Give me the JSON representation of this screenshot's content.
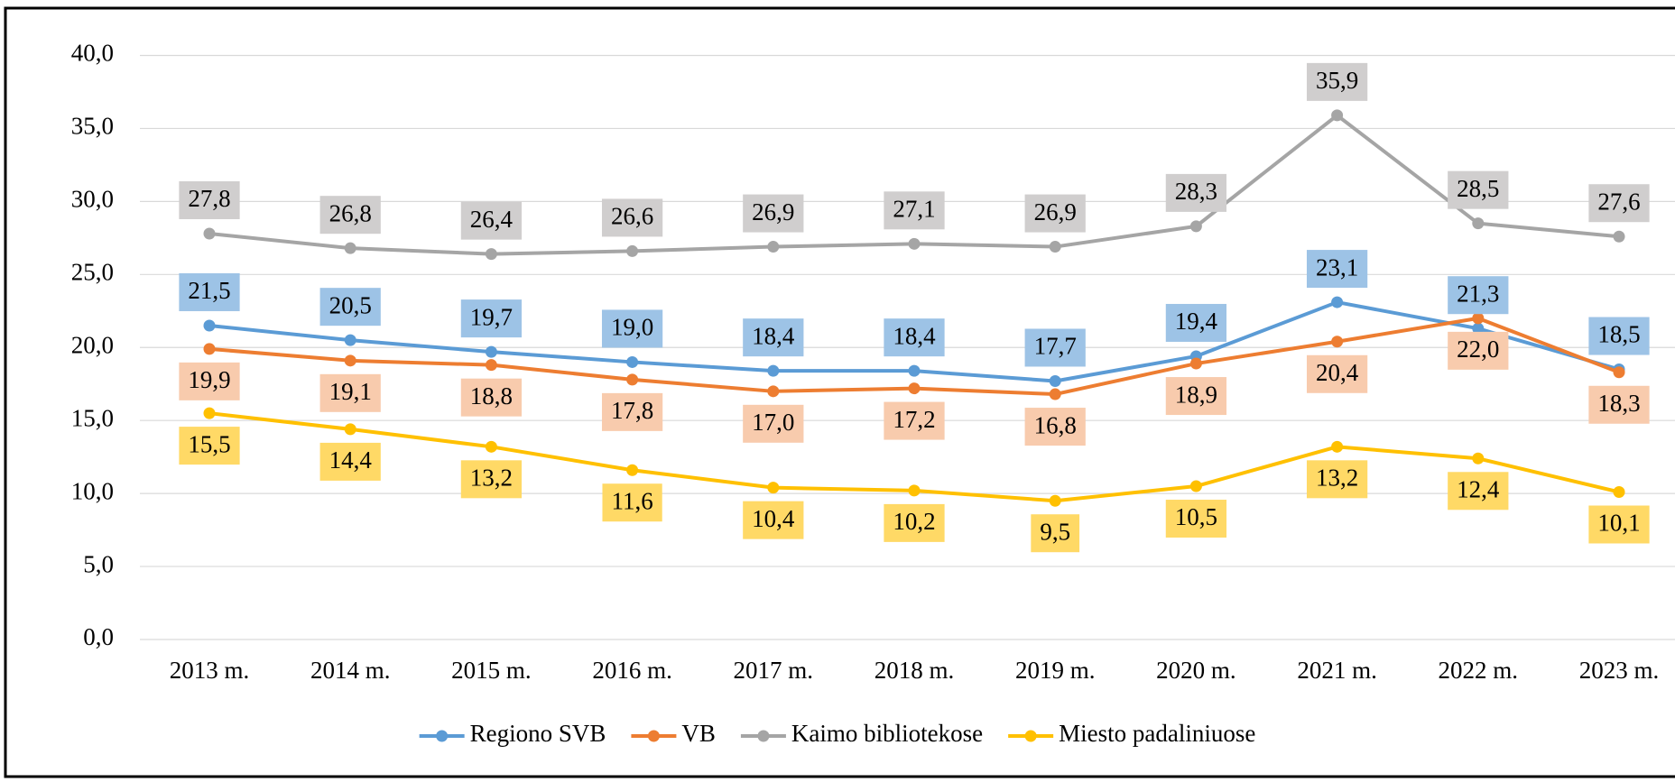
{
  "chart_data": {
    "type": "line",
    "categories": [
      "2013 m.",
      "2014 m.",
      "2015 m.",
      "2016 m.",
      "2017 m.",
      "2018 m.",
      "2019 m.",
      "2020 m.",
      "2021 m.",
      "2022 m.",
      "2023 m."
    ],
    "series": [
      {
        "name": "Regiono SVB",
        "color": "#5b9bd5",
        "label_color": "#9dc3e6",
        "values": [
          21.5,
          20.5,
          19.7,
          19.0,
          18.4,
          18.4,
          17.7,
          19.4,
          23.1,
          21.3,
          18.5
        ],
        "value_labels": [
          "21,5",
          "20,5",
          "19,7",
          "19,0",
          "18,4",
          "18,4",
          "17,7",
          "19,4",
          "23,1",
          "21,3",
          "18,5"
        ]
      },
      {
        "name": "VB",
        "color": "#ed7d31",
        "label_color": "#f8cbad",
        "values": [
          19.9,
          19.1,
          18.8,
          17.8,
          17.0,
          17.2,
          16.8,
          18.9,
          20.4,
          22.0,
          18.3
        ],
        "value_labels": [
          "19,9",
          "19,1",
          "18,8",
          "17,8",
          "17,0",
          "17,2",
          "16,8",
          "18,9",
          "20,4",
          "22,0",
          "18,3"
        ]
      },
      {
        "name": "Kaimo bibliotekose",
        "color": "#a5a5a5",
        "label_color": "#d0cece",
        "values": [
          27.8,
          26.8,
          26.4,
          26.6,
          26.9,
          27.1,
          26.9,
          28.3,
          35.9,
          28.5,
          27.6
        ],
        "value_labels": [
          "27,8",
          "26,8",
          "26,4",
          "26,6",
          "26,9",
          "27,1",
          "26,9",
          "28,3",
          "35,9",
          "28,5",
          "27,6"
        ]
      },
      {
        "name": "Miesto padaliniuose",
        "color": "#ffc000",
        "label_color": "#ffd966",
        "values": [
          15.5,
          14.4,
          13.2,
          11.6,
          10.4,
          10.2,
          9.5,
          10.5,
          13.2,
          12.4,
          10.1
        ],
        "value_labels": [
          "15,5",
          "14,4",
          "13,2",
          "11,6",
          "10,4",
          "10,2",
          "9,5",
          "10,5",
          "13,2",
          "12,4",
          "10,1"
        ]
      }
    ],
    "ylim": [
      0,
      40
    ],
    "yticks": [
      {
        "value": 0,
        "label": "0,0"
      },
      {
        "value": 5,
        "label": "5,0"
      },
      {
        "value": 10,
        "label": "10,0"
      },
      {
        "value": 15,
        "label": "15,0"
      },
      {
        "value": 20,
        "label": "20,0"
      },
      {
        "value": 25,
        "label": "25,0"
      },
      {
        "value": 30,
        "label": "30,0"
      },
      {
        "value": 35,
        "label": "35,0"
      },
      {
        "value": 40,
        "label": "40,0"
      }
    ],
    "grid": true,
    "legend": "bottom"
  }
}
